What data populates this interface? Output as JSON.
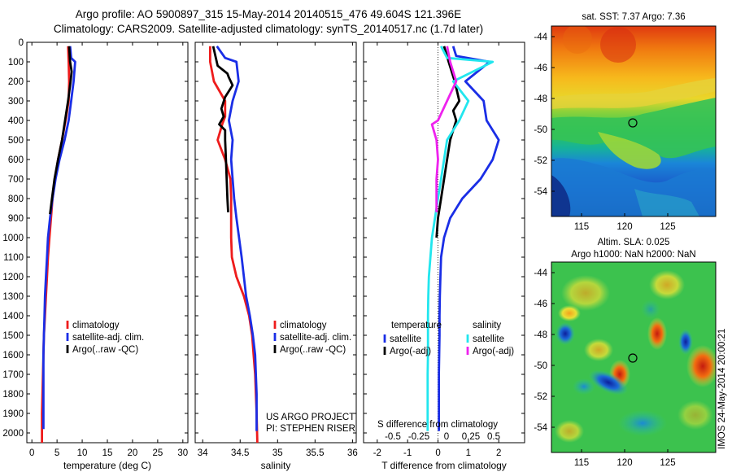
{
  "header": {
    "line1": "Argo profile: AO 5900897_315 15-May-2014 20140515_476 49.604S 121.396E",
    "line2": "Climatology: CARS2009. Satellite-adjusted climatology: synTS_20140517.nc (1.7d later)"
  },
  "colors": {
    "climatology": "#ee1c1c",
    "satellite": "#1a2ee6",
    "argo": "#000000",
    "salinity_sat": "#22e6ee",
    "salinity_argo": "#ee22ee"
  },
  "chart_data": [
    {
      "type": "line",
      "id": "temperature",
      "xlabel": "temperature (deg C)",
      "ylabel": "",
      "xlim": [
        -1,
        31
      ],
      "ylim": [
        2050,
        0
      ],
      "xticks": [
        "0",
        "5",
        "10",
        "15",
        "20",
        "25",
        "30"
      ],
      "xtick_values": [
        0,
        5,
        10,
        15,
        20,
        25,
        30
      ],
      "yticks": [
        "0",
        "100",
        "200",
        "300",
        "400",
        "500",
        "600",
        "700",
        "800",
        "900",
        "1000",
        "1100",
        "1200",
        "1300",
        "1400",
        "1500",
        "1600",
        "1700",
        "1800",
        "1900",
        "2000"
      ],
      "legend": {
        "placement": "lower-center",
        "entries": [
          "climatology",
          "satellite-adj. clim.",
          "Argo(..raw -QC)"
        ]
      },
      "series": [
        {
          "name": "climatology",
          "x": [
            7.2,
            7.3,
            7.4,
            7.3,
            6.7,
            6.0,
            5.2,
            4.6,
            4.1,
            3.8,
            3.5,
            3.2,
            3.0,
            2.8,
            2.6,
            2.4,
            2.3,
            2.2,
            2.1,
            2.0,
            2.0,
            2.0
          ],
          "y": [
            20,
            100,
            200,
            300,
            400,
            500,
            600,
            700,
            800,
            900,
            1000,
            1100,
            1200,
            1300,
            1400,
            1500,
            1600,
            1700,
            1800,
            1900,
            2000,
            2050
          ]
        },
        {
          "name": "satellite-adj. clim.",
          "x": [
            7.6,
            7.8,
            8.6,
            8.3,
            7.8,
            7.3,
            6.5,
            5.5,
            4.7,
            4.1,
            3.6,
            3.2,
            3.0,
            2.8,
            2.6,
            2.5,
            2.4,
            2.3,
            2.3,
            2.3,
            2.3
          ],
          "y": [
            20,
            80,
            100,
            200,
            300,
            400,
            500,
            600,
            700,
            800,
            900,
            1000,
            1100,
            1200,
            1300,
            1400,
            1500,
            1600,
            1700,
            1800,
            1980
          ]
        },
        {
          "name": "Argo(..raw -QC)",
          "x": [
            7.4,
            7.6,
            7.9,
            7.7,
            7.2,
            6.6,
            6.0,
            5.2,
            4.5,
            4.0,
            3.6
          ],
          "y": [
            20,
            100,
            150,
            200,
            300,
            400,
            500,
            600,
            700,
            800,
            880
          ]
        }
      ]
    },
    {
      "type": "line",
      "id": "salinity",
      "xlabel": "salinity",
      "xlim": [
        33.9,
        36.05
      ],
      "ylim": [
        2050,
        0
      ],
      "xticks": [
        "34",
        "34.5",
        "35",
        "35.5",
        "36"
      ],
      "xtick_values": [
        34,
        34.5,
        35,
        35.5,
        36
      ],
      "legend": {
        "placement": "lower-center",
        "entries": [
          "climatology",
          "satellite-adj. clim.",
          "Argo(..raw -QC)"
        ]
      },
      "annotations": [
        "US ARGO PROJECT",
        "PI: STEPHEN RISER"
      ],
      "series": [
        {
          "name": "climatology",
          "x": [
            34.1,
            34.1,
            34.15,
            34.3,
            34.3,
            34.26,
            34.2,
            34.3,
            34.37,
            34.38,
            34.38,
            34.38,
            34.39,
            34.45,
            34.55,
            34.62,
            34.66,
            34.68,
            34.7,
            34.71,
            34.72,
            34.73
          ],
          "y": [
            20,
            100,
            200,
            300,
            380,
            420,
            500,
            600,
            700,
            800,
            900,
            1000,
            1100,
            1200,
            1300,
            1400,
            1500,
            1600,
            1700,
            1800,
            1900,
            2050
          ]
        },
        {
          "name": "satellite-adj. clim.",
          "x": [
            34.19,
            34.3,
            34.45,
            34.48,
            34.4,
            34.35,
            34.4,
            34.38,
            34.4,
            34.42,
            34.45,
            34.52,
            34.58,
            34.63,
            34.67,
            34.7,
            34.71,
            34.72,
            34.72
          ],
          "y": [
            20,
            80,
            100,
            200,
            300,
            400,
            500,
            600,
            700,
            800,
            900,
            1100,
            1300,
            1400,
            1500,
            1600,
            1700,
            1800,
            1990
          ]
        },
        {
          "name": "Argo(..raw -QC)",
          "x": [
            34.14,
            34.2,
            34.33,
            34.35,
            34.4,
            34.3,
            34.25,
            34.28,
            34.22,
            34.3,
            34.3,
            34.31,
            34.32,
            34.33,
            34.34
          ],
          "y": [
            20,
            120,
            160,
            180,
            220,
            280,
            340,
            380,
            420,
            450,
            500,
            600,
            700,
            800,
            870
          ]
        }
      ]
    },
    {
      "type": "line",
      "id": "differences",
      "xlabel": "T difference from climatology",
      "x2label": "S difference from climatology",
      "xlim": [
        -2.45,
        2.85
      ],
      "ylim": [
        2050,
        0
      ],
      "xticks": [
        "-2",
        "-1",
        "0",
        "1",
        "2"
      ],
      "xtick_values": [
        -2,
        -1,
        0,
        1,
        2
      ],
      "x2ticks": [
        "-0.5",
        "-0.25",
        "0",
        "0.25",
        "0.5"
      ],
      "legend": {
        "placement": "lower-center",
        "temperature": [
          "satellite",
          "Argo(-adj)"
        ],
        "salinity": [
          "satellite",
          "Argo(-adj)"
        ],
        "temperature_title": "temperature",
        "salinity_title": "salinity"
      },
      "series": [
        {
          "name": "temperature satellite",
          "x": [
            0.5,
            0.6,
            1.7,
            0.9,
            1.5,
            1.6,
            2.0,
            1.8,
            1.4,
            0.8,
            0.4,
            0.2,
            0.1,
            0.08,
            0.06,
            0.05,
            0.05,
            0.04,
            0.03,
            0.03,
            0.03
          ],
          "y": [
            20,
            70,
            100,
            200,
            300,
            400,
            500,
            600,
            700,
            800,
            900,
            1000,
            1100,
            1200,
            1300,
            1400,
            1500,
            1600,
            1700,
            1800,
            1990
          ]
        },
        {
          "name": "temperature Argo(-adj)",
          "x": [
            0.2,
            0.35,
            0.55,
            0.7,
            0.5,
            0.6,
            0.4,
            0.3,
            0.2,
            0.1,
            0.0,
            -0.05
          ],
          "y": [
            20,
            100,
            200,
            300,
            350,
            400,
            500,
            600,
            700,
            800,
            900,
            1000
          ]
        },
        {
          "name": "salinity satellite",
          "x": [
            0.1,
            0.3,
            1.8,
            0.5,
            1.0,
            0.7,
            0.3,
            0.2,
            0.1,
            0.0,
            -0.1,
            -0.2,
            -0.25,
            -0.3,
            -0.32,
            -0.33,
            -0.33,
            -0.33,
            -0.34,
            -0.34,
            -0.34
          ],
          "y": [
            20,
            80,
            100,
            200,
            300,
            400,
            500,
            600,
            700,
            800,
            900,
            1000,
            1100,
            1200,
            1300,
            1400,
            1500,
            1600,
            1700,
            1800,
            1990
          ]
        },
        {
          "name": "salinity Argo(-adj)",
          "x": [
            0.3,
            0.4,
            0.6,
            0.3,
            0.0,
            -0.2,
            -0.05,
            0.0,
            -0.05,
            -0.05,
            -0.05
          ],
          "y": [
            20,
            100,
            200,
            300,
            400,
            420,
            500,
            600,
            700,
            800,
            870
          ]
        }
      ]
    },
    {
      "type": "heatmap",
      "id": "sst-map",
      "title": "sat. SST: 7.37 Argo: 7.36",
      "xlim": [
        113.5,
        129.5
      ],
      "ylim": [
        -56,
        -43.5
      ],
      "xticks": [
        "115",
        "120",
        "125"
      ],
      "yticks": [
        "-44",
        "-46",
        "-48",
        "-50",
        "-52",
        "-54"
      ],
      "marker": {
        "lon": 121.396,
        "lat": -49.604
      }
    },
    {
      "type": "heatmap",
      "id": "sla-map",
      "title": "Altim. SLA: 0.025",
      "subtitle": "Argo h1000: NaN h2000: NaN",
      "xlim": [
        113.5,
        129.5
      ],
      "ylim": [
        -56,
        -43
      ],
      "xticks": [
        "115",
        "120",
        "125"
      ],
      "yticks": [
        "-44",
        "-46",
        "-48",
        "-50",
        "-52",
        "-54"
      ],
      "marker": {
        "lon": 121.396,
        "lat": -49.604
      },
      "side_label": "IMOS 24-May-2014 20:00:21"
    }
  ]
}
